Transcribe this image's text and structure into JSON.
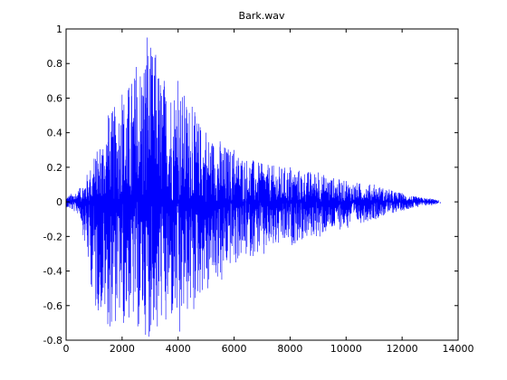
{
  "chart_data": {
    "type": "line",
    "title": "Bark.wav",
    "xlabel": "",
    "ylabel": "",
    "xlim": [
      0,
      14000
    ],
    "ylim": [
      -0.8,
      1
    ],
    "xticks": [
      0,
      2000,
      4000,
      6000,
      8000,
      10000,
      12000,
      14000
    ],
    "xtick_labels": [
      "0",
      "2000",
      "4000",
      "6000",
      "8000",
      "10000",
      "12000",
      "14000"
    ],
    "yticks": [
      -0.8,
      -0.6,
      -0.4,
      -0.2,
      0,
      0.2,
      0.4,
      0.6,
      0.8,
      1
    ],
    "ytick_labels": [
      "-0.8",
      "-0.6",
      "-0.4",
      "-0.2",
      "0",
      "0.2",
      "0.4",
      "0.6",
      "0.8",
      "1"
    ],
    "grid": false,
    "line_color": "#0000ff",
    "series": [
      {
        "x": [
          0,
          500,
          1000,
          1500,
          2000,
          2500,
          2900,
          3200,
          3500,
          4000,
          4500,
          5000,
          5500,
          6000,
          7000,
          8000,
          9000,
          10000,
          11000,
          12000,
          12500,
          13000,
          13300
        ],
        "upper": [
          0.03,
          0.08,
          0.25,
          0.5,
          0.62,
          0.78,
          0.95,
          0.85,
          0.7,
          0.7,
          0.55,
          0.4,
          0.35,
          0.3,
          0.22,
          0.2,
          0.17,
          0.12,
          0.1,
          0.05,
          0.03,
          0.02,
          0.01
        ],
        "lower": [
          -0.03,
          -0.08,
          -0.6,
          -0.72,
          -0.7,
          -0.72,
          -0.78,
          -0.72,
          -0.68,
          -0.75,
          -0.62,
          -0.5,
          -0.45,
          -0.35,
          -0.3,
          -0.25,
          -0.2,
          -0.15,
          -0.1,
          -0.05,
          -0.03,
          -0.02,
          -0.01
        ]
      }
    ]
  }
}
